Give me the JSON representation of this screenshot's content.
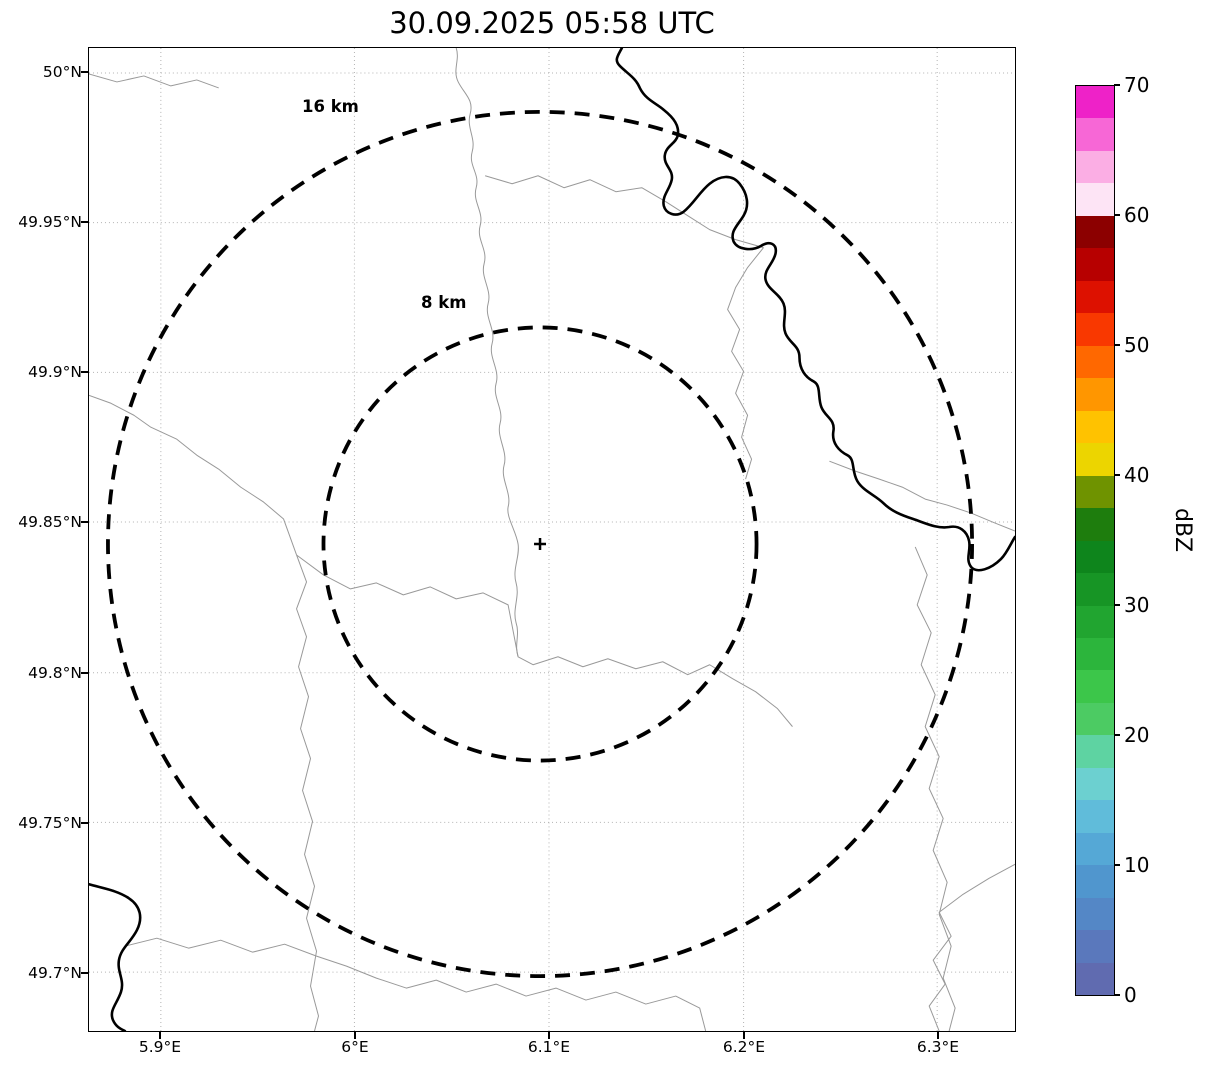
{
  "title": "30.09.2025 05:58 UTC",
  "map": {
    "center_marker": "+",
    "range_rings": [
      {
        "label": "16 km",
        "radius_km": 16
      },
      {
        "label": "8 km",
        "radius_km": 8
      }
    ],
    "x_axis": {
      "tick_labels": [
        "5.9°E",
        "6°E",
        "6.1°E",
        "6.2°E",
        "6.3°E"
      ]
    },
    "y_axis": {
      "tick_labels": [
        "50°N",
        "49.95°N",
        "49.9°N",
        "49.85°N",
        "49.8°N",
        "49.75°N",
        "49.7°N"
      ]
    }
  },
  "colorbar": {
    "label": "dBZ",
    "tick_labels": [
      "0",
      "10",
      "20",
      "30",
      "40",
      "50",
      "60",
      "70"
    ],
    "range": [
      0,
      70
    ],
    "colors_bottom_to_top": [
      "#606bb0",
      "#5a78bc",
      "#5487c6",
      "#5096ce",
      "#55a8d6",
      "#60bcda",
      "#6cd0d0",
      "#5ed3a2",
      "#4ccb63",
      "#3cc64a",
      "#2cb53c",
      "#21a530",
      "#179525",
      "#0e851c",
      "#1e7d0d",
      "#6f9300",
      "#ecd500",
      "#ffc200",
      "#ff9600",
      "#ff6800",
      "#f93800",
      "#dd1100",
      "#b70000",
      "#8c0000",
      "#fde4f5",
      "#fbaee4",
      "#f767d6",
      "#ee22c8"
    ]
  },
  "chart_data": {
    "type": "map",
    "title": "30.09.2025 05:58 UTC",
    "x_axis": {
      "ticks": [
        "5.9°E",
        "6°E",
        "6.1°E",
        "6.2°E",
        "6.3°E"
      ]
    },
    "y_axis": {
      "ticks": [
        "50°N",
        "49.95°N",
        "49.9°N",
        "49.85°N",
        "49.8°N",
        "49.75°N",
        "49.7°N"
      ]
    },
    "colorbar": {
      "label": "dBZ",
      "min": 0,
      "max": 70,
      "ticks": [
        0,
        10,
        20,
        30,
        40,
        50,
        60,
        70
      ]
    },
    "range_rings_km": [
      8,
      16
    ],
    "radar_center": {
      "lon_deg_e": 6.1,
      "lat_deg_n": 49.84
    },
    "grid": "dotted lat/lon graticule",
    "legend_position": "right colorbar"
  }
}
